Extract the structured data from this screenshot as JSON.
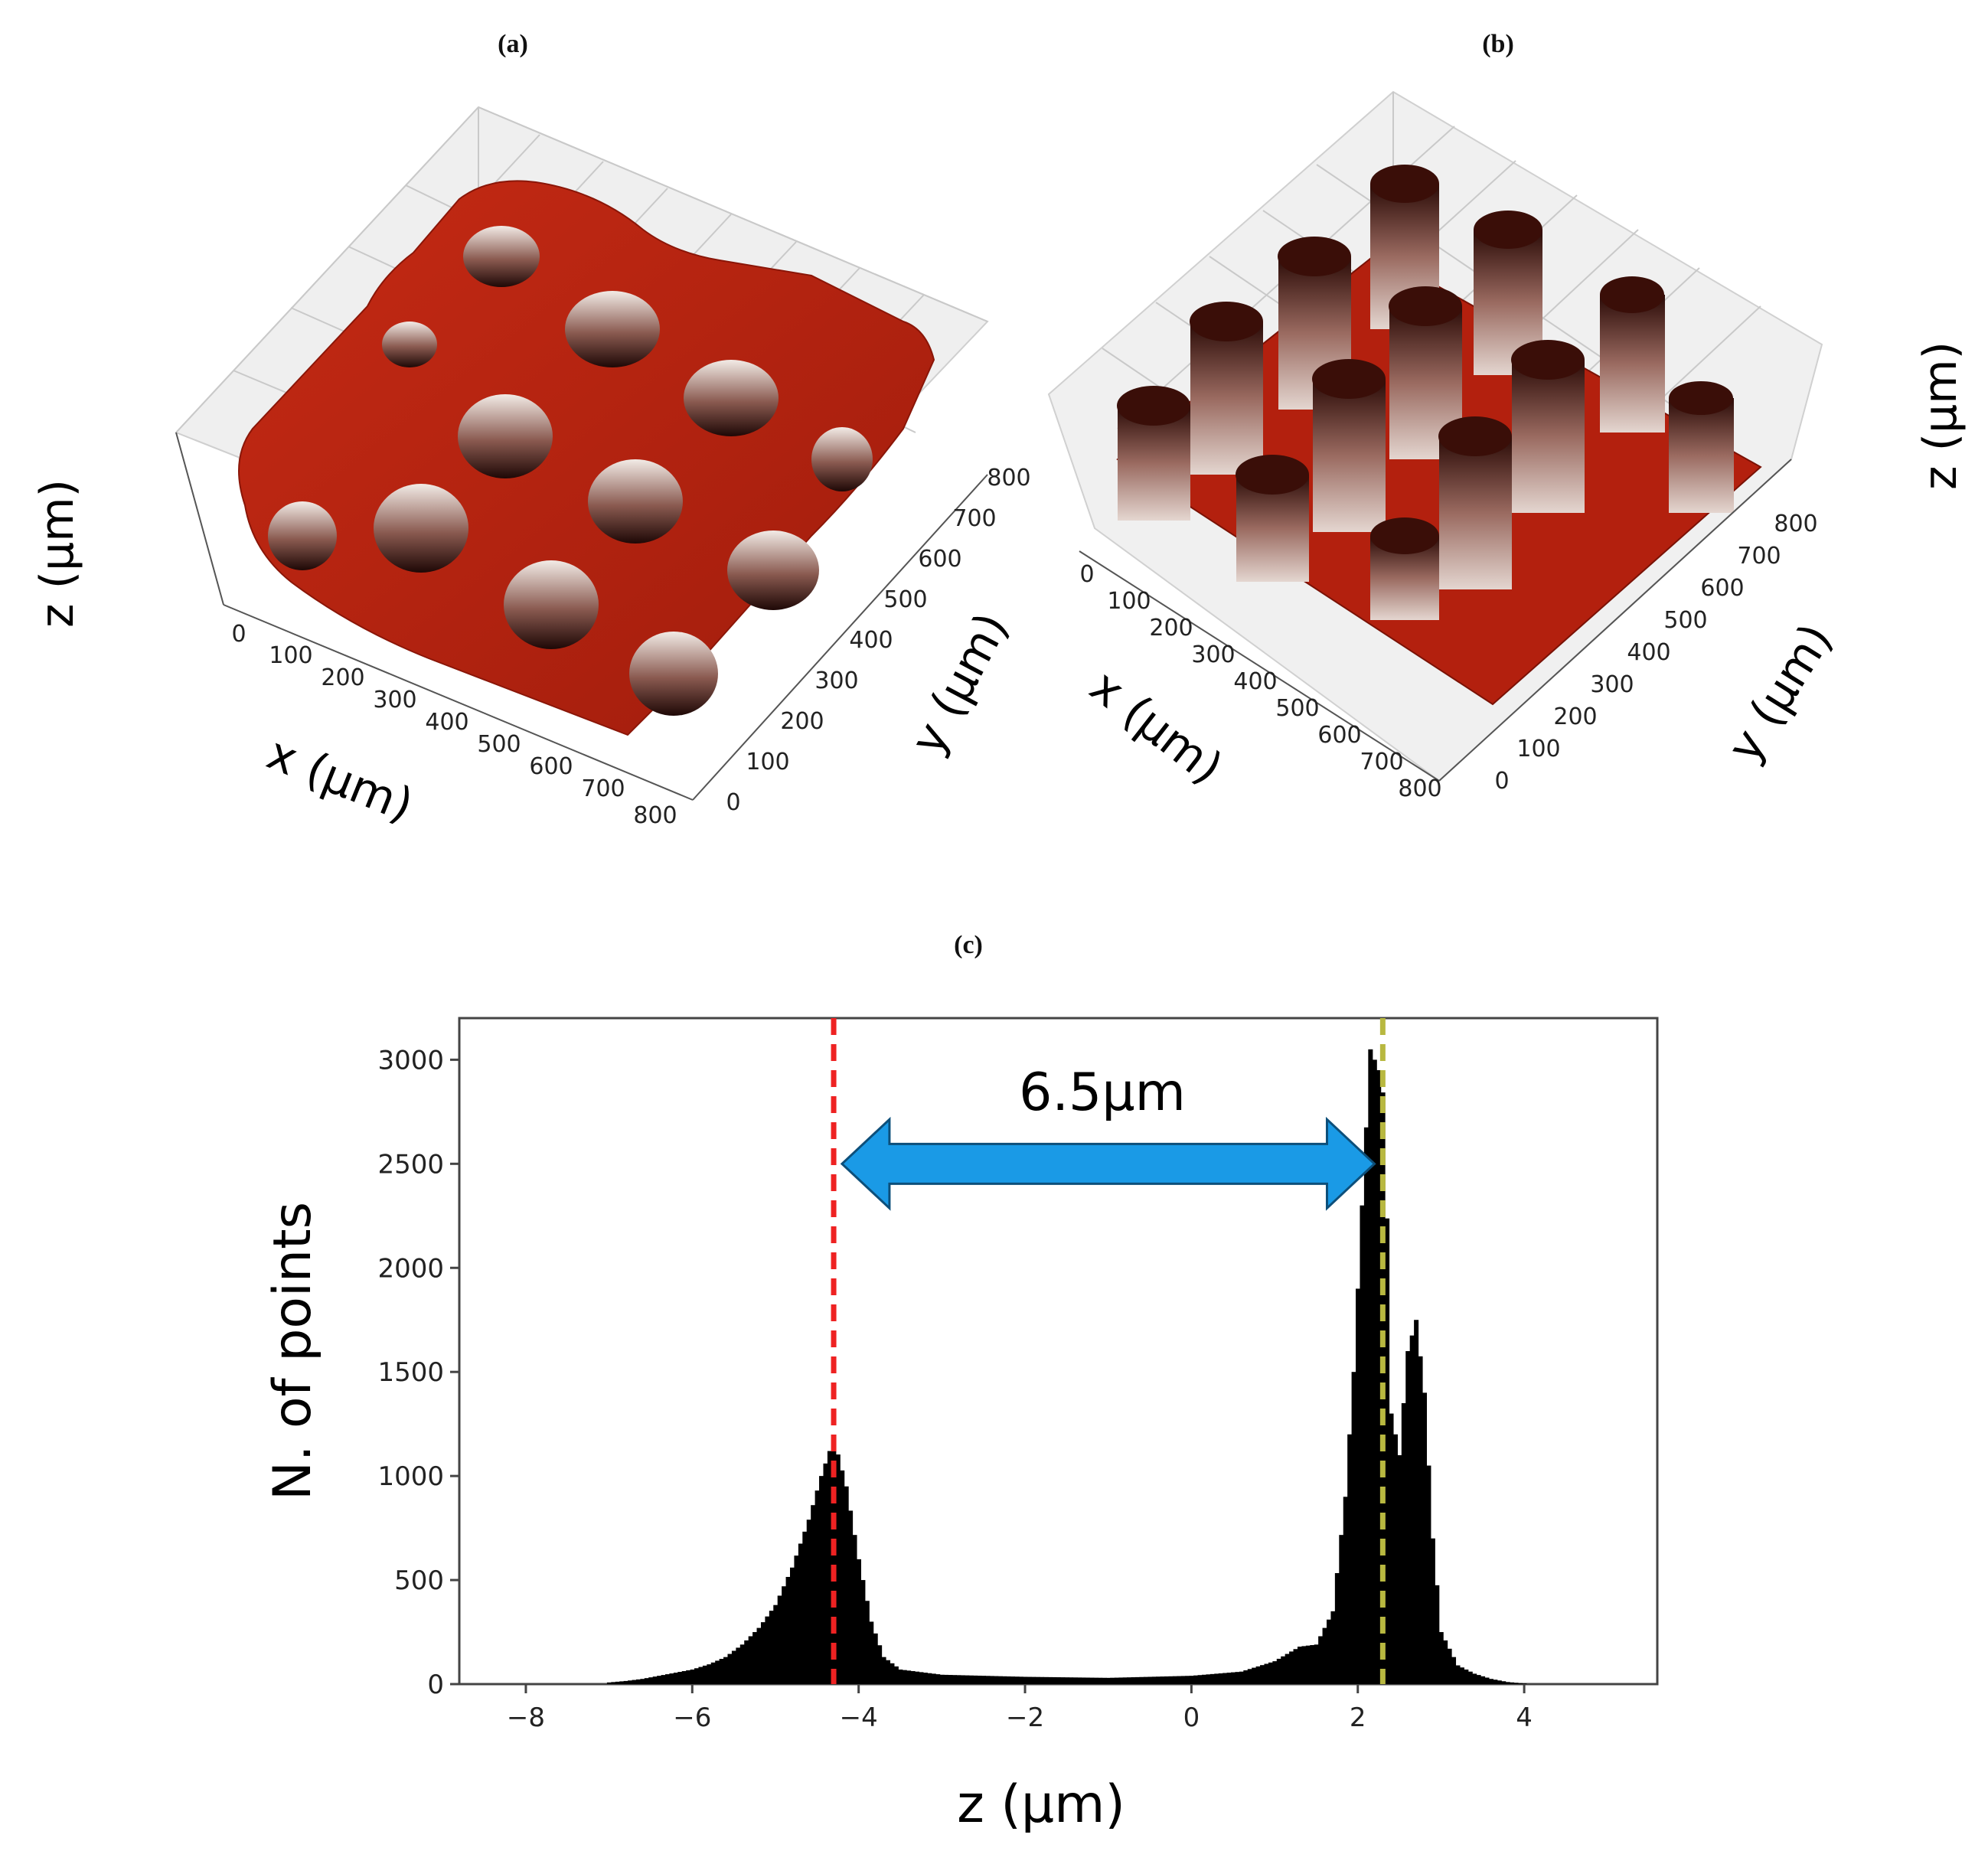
{
  "panels": {
    "a": {
      "label": "(a)",
      "xlabel": "x (μm)",
      "ylabel": "y (μm)",
      "zlabel": "z (μm)",
      "x_ticks": [
        "0",
        "100",
        "200",
        "300",
        "400",
        "500",
        "600",
        "700",
        "800"
      ],
      "y_ticks": [
        "0",
        "100",
        "200",
        "300",
        "400",
        "500",
        "600",
        "700",
        "800"
      ],
      "surface_color": "#b5200f"
    },
    "b": {
      "label": "(b)",
      "xlabel": "x (μm)",
      "ylabel": "y (μm)",
      "zlabel": "z (μm)",
      "x_ticks": [
        "0",
        "100",
        "200",
        "300",
        "400",
        "500",
        "600",
        "700",
        "800"
      ],
      "y_ticks": [
        "0",
        "100",
        "200",
        "300",
        "400",
        "500",
        "600",
        "700",
        "800"
      ],
      "surface_color": "#b5200f"
    },
    "c": {
      "label": "(c)",
      "annotation": "6.5μm"
    }
  },
  "chart_data": {
    "type": "bar",
    "title": "",
    "xlabel": "z (μm)",
    "ylabel": "N. of points",
    "xlim": [
      -8.8,
      5.6
    ],
    "ylim": [
      0,
      3200
    ],
    "x_ticks": [
      -8,
      -6,
      -4,
      -2,
      0,
      2,
      4
    ],
    "x_tick_labels": [
      "−8",
      "−6",
      "−4",
      "−2",
      "0",
      "2",
      "4"
    ],
    "y_ticks": [
      0,
      500,
      1000,
      1500,
      2000,
      2500,
      3000
    ],
    "bin_width": 0.05,
    "peaks": [
      {
        "z": -4.3,
        "count": 1180
      },
      {
        "z": 2.2,
        "count": 3050
      },
      {
        "z": 2.7,
        "count": 1750
      }
    ],
    "bins": [
      {
        "z": -7.0,
        "count": 8
      },
      {
        "z": -6.8,
        "count": 15
      },
      {
        "z": -6.6,
        "count": 25
      },
      {
        "z": -6.4,
        "count": 40
      },
      {
        "z": -6.2,
        "count": 55
      },
      {
        "z": -6.0,
        "count": 70
      },
      {
        "z": -5.8,
        "count": 95
      },
      {
        "z": -5.6,
        "count": 130
      },
      {
        "z": -5.4,
        "count": 190
      },
      {
        "z": -5.2,
        "count": 270
      },
      {
        "z": -5.0,
        "count": 380
      },
      {
        "z": -4.8,
        "count": 560
      },
      {
        "z": -4.6,
        "count": 790
      },
      {
        "z": -4.45,
        "count": 1000
      },
      {
        "z": -4.3,
        "count": 1180
      },
      {
        "z": -4.15,
        "count": 950
      },
      {
        "z": -4.0,
        "count": 600
      },
      {
        "z": -3.85,
        "count": 300
      },
      {
        "z": -3.7,
        "count": 130
      },
      {
        "z": -3.5,
        "count": 70
      },
      {
        "z": -3.0,
        "count": 45
      },
      {
        "z": -2.0,
        "count": 35
      },
      {
        "z": -1.0,
        "count": 30
      },
      {
        "z": 0.0,
        "count": 40
      },
      {
        "z": 0.6,
        "count": 60
      },
      {
        "z": 1.0,
        "count": 110
      },
      {
        "z": 1.3,
        "count": 180
      },
      {
        "z": 1.5,
        "count": 190
      },
      {
        "z": 1.7,
        "count": 350
      },
      {
        "z": 1.85,
        "count": 900
      },
      {
        "z": 1.95,
        "count": 1500
      },
      {
        "z": 2.05,
        "count": 2300
      },
      {
        "z": 2.15,
        "count": 3050
      },
      {
        "z": 2.25,
        "count": 2950
      },
      {
        "z": 2.32,
        "count": 2800
      },
      {
        "z": 2.4,
        "count": 1300
      },
      {
        "z": 2.5,
        "count": 1100
      },
      {
        "z": 2.6,
        "count": 1600
      },
      {
        "z": 2.7,
        "count": 1750
      },
      {
        "z": 2.8,
        "count": 1400
      },
      {
        "z": 2.9,
        "count": 700
      },
      {
        "z": 3.0,
        "count": 250
      },
      {
        "z": 3.2,
        "count": 90
      },
      {
        "z": 3.4,
        "count": 50
      },
      {
        "z": 3.6,
        "count": 25
      },
      {
        "z": 3.8,
        "count": 10
      },
      {
        "z": 4.0,
        "count": 3
      }
    ],
    "reference_lines": [
      {
        "z": -4.3,
        "color": "#ee2222",
        "style": "dashed"
      },
      {
        "z": 2.3,
        "color": "#b8b840",
        "style": "dashed"
      }
    ],
    "arrow": {
      "from_z": -4.2,
      "to_z": 2.2,
      "count": 2500,
      "color": "#1a9ae6",
      "label": "6.5μm"
    }
  }
}
